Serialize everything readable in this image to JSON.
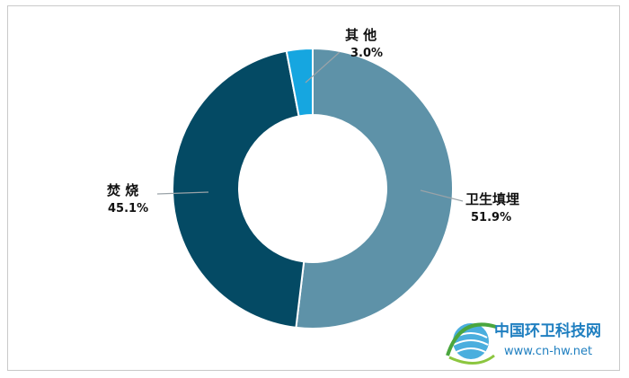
{
  "chart_data": {
    "type": "pie",
    "donut": true,
    "slices": [
      {
        "label": "卫生填埋",
        "value": 51.9,
        "value_label": "51.9%",
        "color": "#5e92a8"
      },
      {
        "label": "焚 烧",
        "value": 45.1,
        "value_label": "45.1%",
        "color": "#044a64"
      },
      {
        "label": "其 他",
        "value": 3.0,
        "value_label": "3.0%",
        "color": "#16a6e0"
      }
    ]
  },
  "watermark": {
    "title": "中国环卫科技网",
    "url": "www.cn-hw.net",
    "color": "#1f7fc0"
  }
}
